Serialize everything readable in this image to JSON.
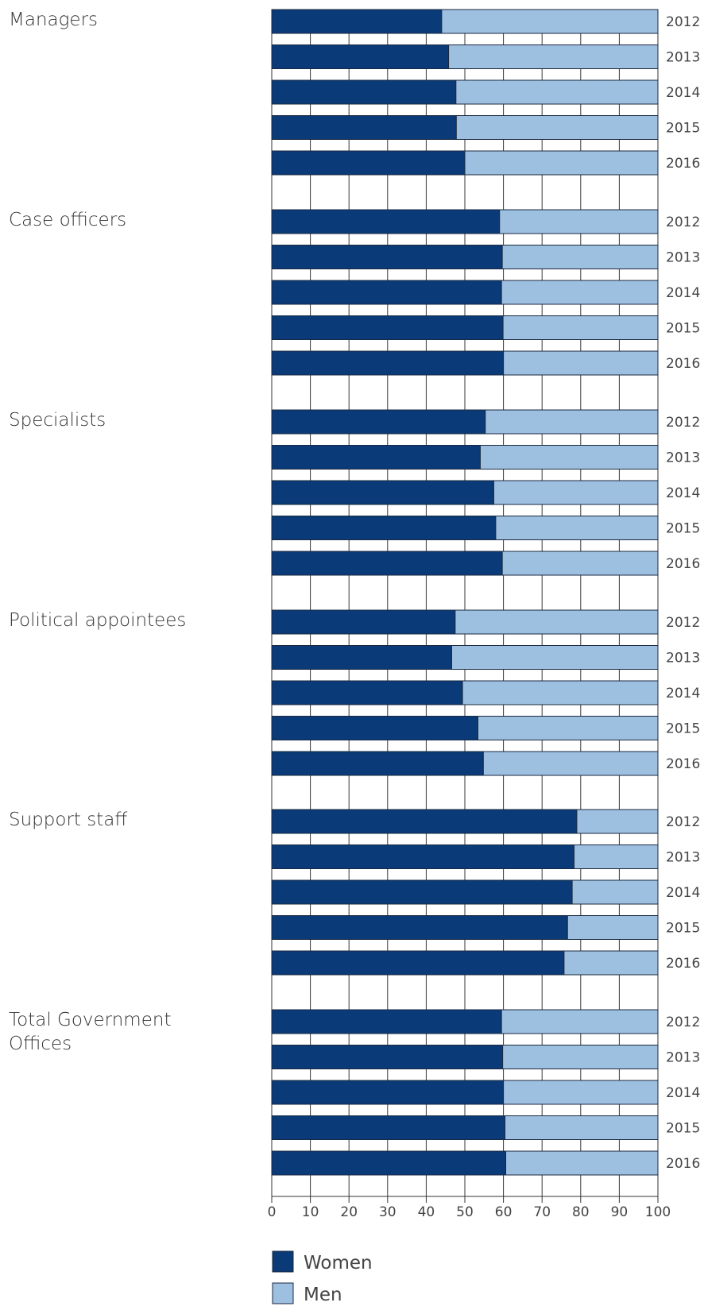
{
  "chart_data": {
    "type": "bar",
    "orientation": "horizontal",
    "stacked": true,
    "groups": [
      {
        "label": [
          "Managers"
        ],
        "years": [
          "2012",
          "2013",
          "2014",
          "2015",
          "2016"
        ],
        "women": [
          44,
          45.8,
          47.7,
          47.8,
          50
        ]
      },
      {
        "label": [
          "Case officers"
        ],
        "years": [
          "2012",
          "2013",
          "2014",
          "2015",
          "2016"
        ],
        "women": [
          59,
          59.7,
          59.5,
          59.9,
          60
        ]
      },
      {
        "label": [
          "Specialists"
        ],
        "years": [
          "2012",
          "2013",
          "2014",
          "2015",
          "2016"
        ],
        "women": [
          55.3,
          54,
          57.5,
          58,
          59.7
        ]
      },
      {
        "label": [
          "Political appointees"
        ],
        "years": [
          "2012",
          "2013",
          "2014",
          "2015",
          "2016"
        ],
        "women": [
          47.5,
          46.6,
          49.4,
          53.4,
          54.8
        ]
      },
      {
        "label": [
          "Support staff"
        ],
        "years": [
          "2012",
          "2013",
          "2014",
          "2015",
          "2016"
        ],
        "women": [
          79,
          78.3,
          77.8,
          76.6,
          75.7
        ]
      },
      {
        "label": [
          "Total Government",
          "Offices"
        ],
        "years": [
          "2012",
          "2013",
          "2014",
          "2015",
          "2016"
        ],
        "women": [
          59.5,
          59.8,
          60,
          60.4,
          60.6
        ]
      }
    ],
    "series": [
      {
        "name": "Women",
        "color": "#0a3a78"
      },
      {
        "name": "Men",
        "color": "#9dbfe0"
      }
    ],
    "xticks": [
      "0",
      "10",
      "20",
      "30",
      "40",
      "50",
      "60",
      "70",
      "80",
      "90",
      "100"
    ],
    "xlim": [
      0,
      100
    ],
    "grid": true,
    "legend_position": "bottom"
  }
}
